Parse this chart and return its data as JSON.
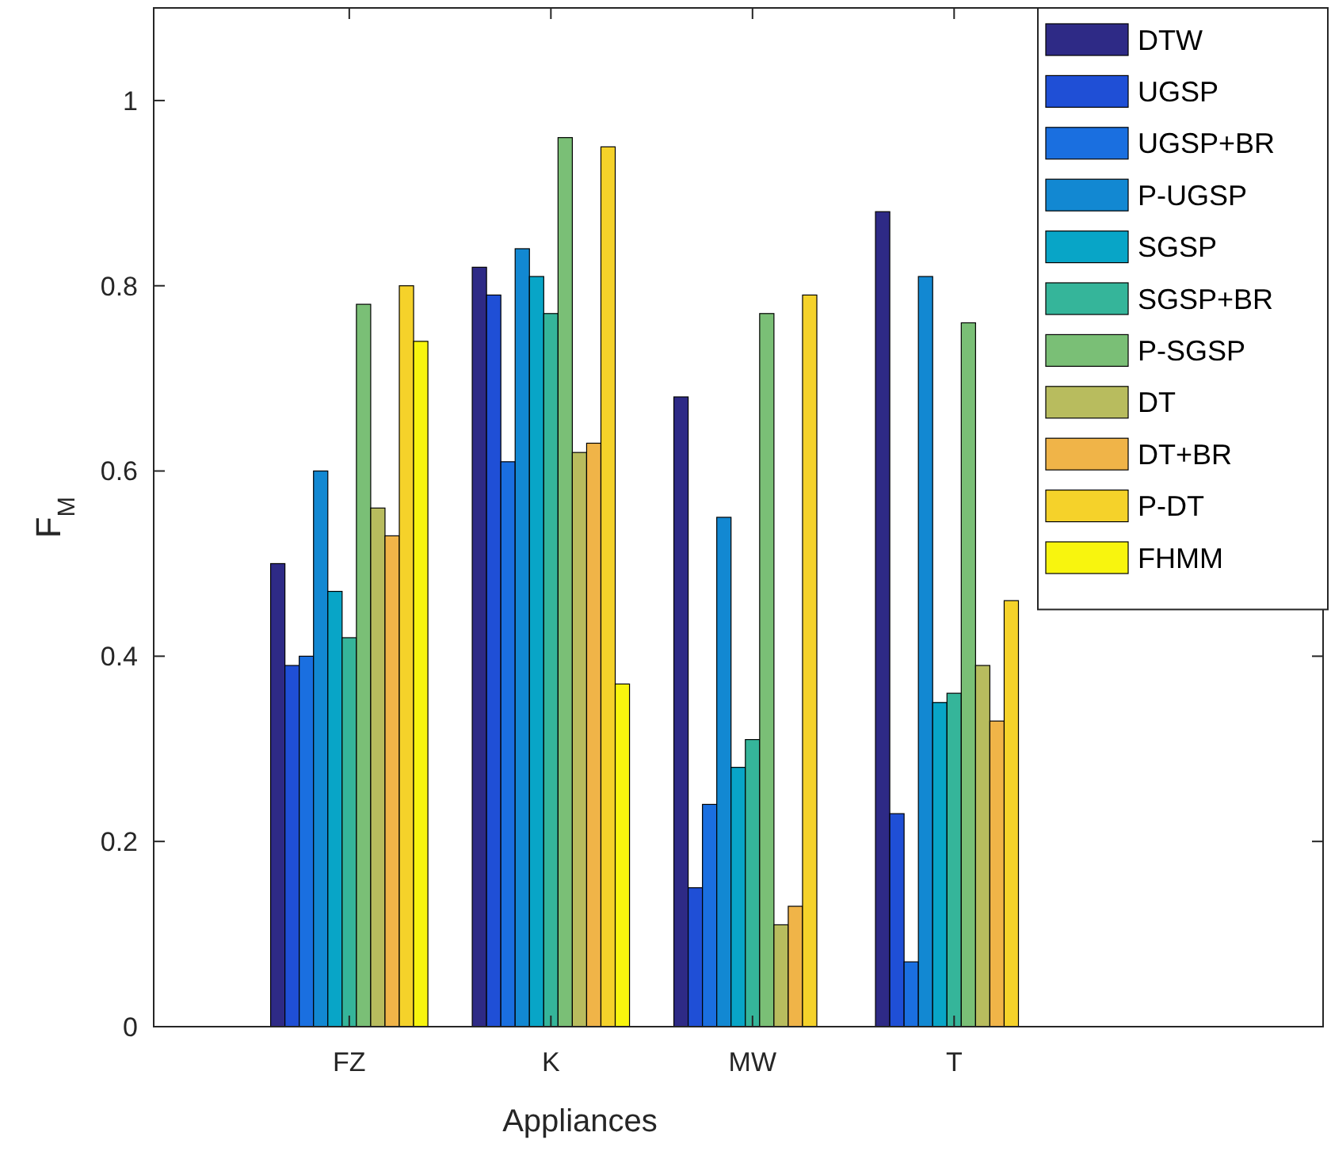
{
  "chart_data": {
    "type": "bar",
    "xlabel": "Appliances",
    "ylabel": "F$_{M}$",
    "categories": [
      "FZ",
      "K",
      "MW",
      "T"
    ],
    "ylim": [
      0,
      1.1
    ],
    "yticks": [
      0,
      0.2,
      0.4,
      0.6,
      0.8,
      1
    ],
    "grid": false,
    "legend": "top right",
    "series": [
      {
        "name": "DTW",
        "color": "#2e2a86",
        "values": [
          0.5,
          0.82,
          0.68,
          0.88
        ]
      },
      {
        "name": "UGSP",
        "color": "#1f4fd6",
        "values": [
          0.39,
          0.79,
          0.15,
          0.23
        ]
      },
      {
        "name": "UGSP+BR",
        "color": "#1a6fe0",
        "values": [
          0.4,
          0.61,
          0.24,
          0.07
        ]
      },
      {
        "name": "P-UGSP",
        "color": "#1288d2",
        "values": [
          0.6,
          0.84,
          0.55,
          0.81
        ]
      },
      {
        "name": "SGSP",
        "color": "#08a5c7",
        "values": [
          0.47,
          0.81,
          0.28,
          0.35
        ]
      },
      {
        "name": "SGSP+BR",
        "color": "#35b59a",
        "values": [
          0.42,
          0.77,
          0.31,
          0.36
        ]
      },
      {
        "name": "P-SGSP",
        "color": "#7abf76",
        "values": [
          0.78,
          0.96,
          0.77,
          0.76
        ]
      },
      {
        "name": "DT",
        "color": "#b8bc5e",
        "values": [
          0.56,
          0.62,
          0.11,
          0.39
        ]
      },
      {
        "name": "DT+BR",
        "color": "#f0b448",
        "values": [
          0.53,
          0.63,
          0.13,
          0.33
        ]
      },
      {
        "name": "P-DT",
        "color": "#f5d22a",
        "values": [
          0.8,
          0.95,
          0.79,
          0.46
        ]
      },
      {
        "name": "FHMM",
        "color": "#f8f50e",
        "values": [
          0.74,
          0.37,
          0,
          0
        ]
      }
    ]
  }
}
